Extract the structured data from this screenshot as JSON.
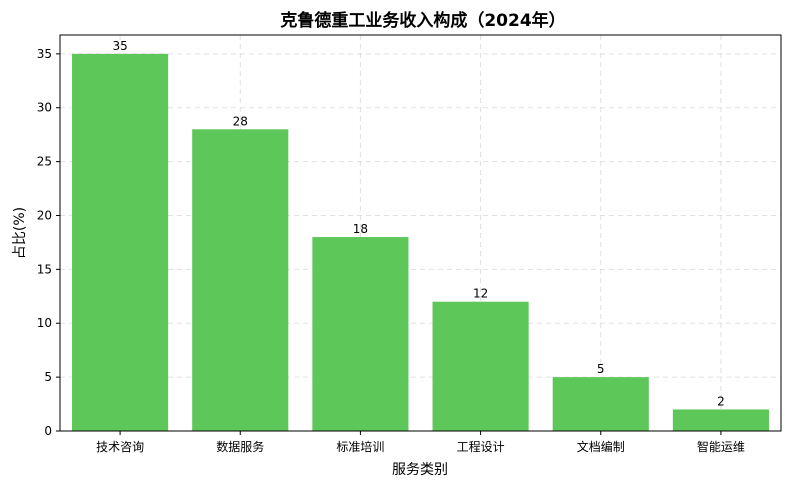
{
  "chart_data": {
    "type": "bar",
    "title": "克鲁德重工业务收入构成（2024年）",
    "xlabel": "服务类别",
    "ylabel": "占比(%)",
    "categories": [
      "技术咨询",
      "数据服务",
      "标准培训",
      "工程设计",
      "文档编制",
      "智能运维"
    ],
    "values": [
      35,
      28,
      18,
      12,
      5,
      2
    ],
    "ylim": [
      0,
      36.75
    ],
    "yticks": [
      0,
      5,
      10,
      15,
      20,
      25,
      30,
      35
    ],
    "grid": true,
    "bar_color": "#5ec75a"
  }
}
